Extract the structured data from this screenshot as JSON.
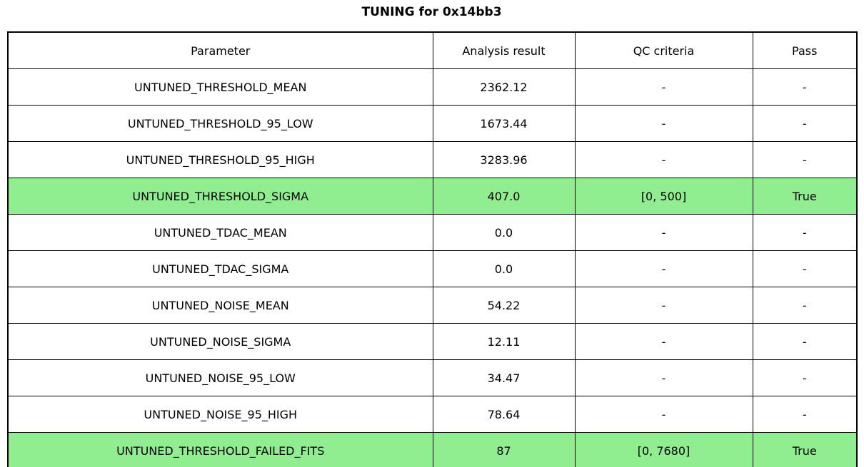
{
  "figure": {
    "title": "TUNING for 0x14bb3"
  },
  "colors": {
    "highlight_green": "#90EE90",
    "border": "#000000",
    "background": "#ffffff",
    "text": "#000000"
  },
  "chart_data": {
    "type": "table",
    "title": "TUNING for 0x14bb3",
    "columns": [
      "Parameter",
      "Analysis result",
      "QC criteria",
      "Pass"
    ],
    "rows": [
      {
        "parameter": "UNTUNED_THRESHOLD_MEAN",
        "result": "2362.12",
        "qc": "-",
        "pass": "-",
        "highlight": false
      },
      {
        "parameter": "UNTUNED_THRESHOLD_95_LOW",
        "result": "1673.44",
        "qc": "-",
        "pass": "-",
        "highlight": false
      },
      {
        "parameter": "UNTUNED_THRESHOLD_95_HIGH",
        "result": "3283.96",
        "qc": "-",
        "pass": "-",
        "highlight": false
      },
      {
        "parameter": "UNTUNED_THRESHOLD_SIGMA",
        "result": "407.0",
        "qc": "[0, 500]",
        "pass": "True",
        "highlight": true
      },
      {
        "parameter": "UNTUNED_TDAC_MEAN",
        "result": "0.0",
        "qc": "-",
        "pass": "-",
        "highlight": false
      },
      {
        "parameter": "UNTUNED_TDAC_SIGMA",
        "result": "0.0",
        "qc": "-",
        "pass": "-",
        "highlight": false
      },
      {
        "parameter": "UNTUNED_NOISE_MEAN",
        "result": "54.22",
        "qc": "-",
        "pass": "-",
        "highlight": false
      },
      {
        "parameter": "UNTUNED_NOISE_SIGMA",
        "result": "12.11",
        "qc": "-",
        "pass": "-",
        "highlight": false
      },
      {
        "parameter": "UNTUNED_NOISE_95_LOW",
        "result": "34.47",
        "qc": "-",
        "pass": "-",
        "highlight": false
      },
      {
        "parameter": "UNTUNED_NOISE_95_HIGH",
        "result": "78.64",
        "qc": "-",
        "pass": "-",
        "highlight": false
      },
      {
        "parameter": "UNTUNED_THRESHOLD_FAILED_FITS",
        "result": "87",
        "qc": "[0, 7680]",
        "pass": "True",
        "highlight": true
      }
    ],
    "layout": {
      "grid": true,
      "highlighted_row_parameters": [
        "UNTUNED_THRESHOLD_SIGMA",
        "UNTUNED_THRESHOLD_FAILED_FITS"
      ]
    }
  }
}
